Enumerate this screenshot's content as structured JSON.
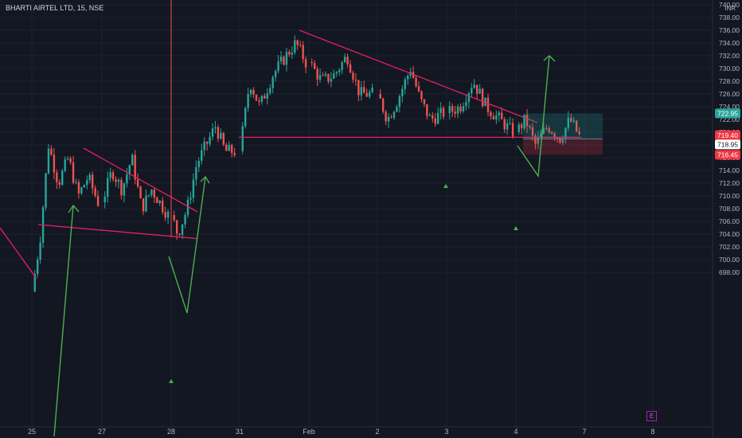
{
  "header": {
    "symbol": "BHARTI AIRTEL LTD",
    "interval": "15",
    "exchange": "NSE"
  },
  "price_axis": {
    "currency": "INR"
  },
  "event_marker": {
    "label": "E",
    "icon": "earnings-icon"
  },
  "price_badges": [
    {
      "value": "722.95",
      "color": "#26a69a"
    },
    {
      "value": "719.40",
      "color": "#f23645"
    },
    {
      "value": "718.95",
      "color": "#b2b5be"
    },
    {
      "value": "716.45",
      "color": "#f23645"
    }
  ],
  "colors": {
    "background": "#131722",
    "up_candle": "#26a69a",
    "down_candle": "#ef5350",
    "trendline": "#e91e63",
    "projection": "#4caf50",
    "target_zone": "#26a69a",
    "stop_zone": "#f23645",
    "marker": "#4caf50"
  },
  "chart_data": {
    "type": "candlestick",
    "title": "BHARTI AIRTEL LTD, 15, NSE",
    "x_ticks": [
      "25",
      "27",
      "28",
      "31",
      "Feb",
      "2",
      "3",
      "4",
      "7",
      "8"
    ],
    "y_ticks": [
      "698.00",
      "700.00",
      "702.00",
      "704.00",
      "706.00",
      "708.00",
      "710.00",
      "712.00",
      "714.00",
      "716.00",
      "718.00",
      "720.00",
      "722.00",
      "724.00",
      "726.00",
      "728.00",
      "730.00",
      "732.00",
      "734.00",
      "736.00",
      "738.00",
      "740.00"
    ],
    "ylim": [
      697,
      741
    ],
    "grid": true,
    "sessions": [
      {
        "label": "25",
        "start": 695,
        "end": 709,
        "anchors": [
          [
            0,
            695
          ],
          [
            0.12,
            703
          ],
          [
            0.25,
            718
          ],
          [
            0.4,
            712
          ],
          [
            0.55,
            716
          ],
          [
            0.7,
            710
          ],
          [
            0.85,
            713
          ],
          [
            1,
            709
          ]
        ]
      },
      {
        "label": "27",
        "start": 709,
        "end": 707,
        "anchors": [
          [
            0,
            709
          ],
          [
            0.15,
            714
          ],
          [
            0.3,
            711
          ],
          [
            0.45,
            716
          ],
          [
            0.6,
            708
          ],
          [
            0.75,
            711
          ],
          [
            1,
            707
          ]
        ]
      },
      {
        "label": "28",
        "start": 707,
        "end": 717,
        "anchors": [
          [
            0,
            707
          ],
          [
            0.1,
            704
          ],
          [
            0.25,
            708
          ],
          [
            0.4,
            715
          ],
          [
            0.55,
            718
          ],
          [
            0.7,
            721
          ],
          [
            0.85,
            717
          ],
          [
            1,
            717
          ]
        ]
      },
      {
        "label": "31",
        "start": 717,
        "end": 731,
        "anchors": [
          [
            0,
            717
          ],
          [
            0.15,
            728
          ],
          [
            0.3,
            724
          ],
          [
            0.5,
            729
          ],
          [
            0.7,
            732
          ],
          [
            0.85,
            734
          ],
          [
            1,
            731
          ]
        ]
      },
      {
        "label": "Feb",
        "start": 731,
        "end": 726,
        "anchors": [
          [
            0,
            731
          ],
          [
            0.2,
            728
          ],
          [
            0.4,
            729
          ],
          [
            0.6,
            732
          ],
          [
            0.8,
            726
          ],
          [
            1,
            726
          ]
        ]
      },
      {
        "label": "2",
        "start": 726,
        "end": 723,
        "anchors": [
          [
            0,
            726
          ],
          [
            0.15,
            722
          ],
          [
            0.3,
            725
          ],
          [
            0.5,
            730
          ],
          [
            0.65,
            725
          ],
          [
            0.8,
            722
          ],
          [
            1,
            723
          ]
        ]
      },
      {
        "label": "3",
        "start": 723,
        "end": 720,
        "anchors": [
          [
            0,
            723
          ],
          [
            0.2,
            724
          ],
          [
            0.4,
            728
          ],
          [
            0.6,
            724
          ],
          [
            0.8,
            722
          ],
          [
            1,
            720
          ]
        ]
      },
      {
        "label": "4",
        "start": 720,
        "end": 719,
        "anchors": [
          [
            0,
            720
          ],
          [
            0.15,
            722
          ],
          [
            0.3,
            718
          ],
          [
            0.5,
            721
          ],
          [
            0.7,
            719
          ],
          [
            0.85,
            722
          ],
          [
            1,
            719.4
          ]
        ]
      }
    ],
    "drawings": {
      "trendlines": [
        {
          "from": [
            "25",
            705.5
          ],
          "to": [
            "28",
            703.3
          ],
          "kind": "support"
        },
        {
          "from": [
            "27",
            717.5
          ],
          "to": [
            "28",
            707.5
          ],
          "kind": "resistance"
        },
        {
          "from": [
            "31",
            719.2
          ],
          "to": [
            "4",
            719.2
          ],
          "kind": "support"
        },
        {
          "from": [
            "Feb",
            736
          ],
          "to": [
            "4",
            721.5
          ],
          "kind": "resistance"
        }
      ],
      "position": {
        "entry": 718.95,
        "target": 722.95,
        "stop": 716.45
      }
    }
  }
}
